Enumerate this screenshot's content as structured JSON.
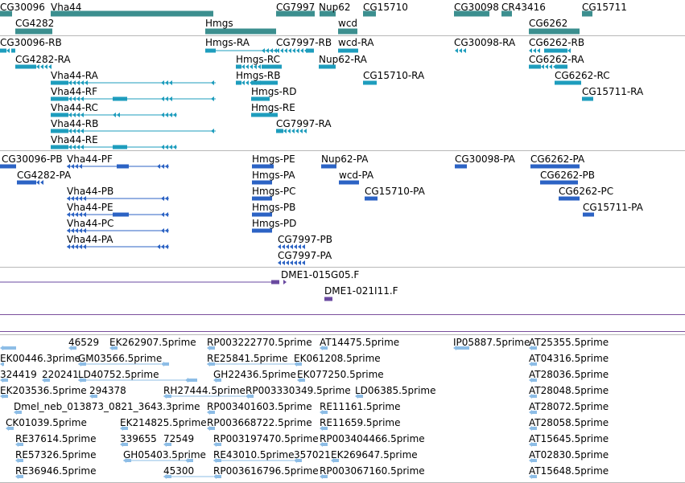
{
  "colors": {
    "gene": "#3c8f8f",
    "transcript_rna": "#1e9dbd",
    "transcript_protein": "#2c63c4",
    "est_clone": "#6a4aa0",
    "est_read": "#8dbde6",
    "separator": "#b8b8b8",
    "purple_line": "#7a4e9c"
  },
  "tracks": {
    "genes": {
      "labels": [
        "CG30096",
        "Vha44",
        "CG7997",
        "Nup62",
        "CG15710",
        "CG30098",
        "CR43416",
        "CG15711",
        "CG4282",
        "Hmgs",
        "wcd",
        "CG6262"
      ]
    },
    "transcripts": {
      "labels": [
        "CG30096-RB",
        "Hmgs-RA",
        "CG7997-RB",
        "wcd-RA",
        "CG30098-RA",
        "CG6262-RB",
        "CG4282-RA",
        "Hmgs-RC",
        "Nup62-RA",
        "CG6262-RA",
        "Vha44-RA",
        "Hmgs-RB",
        "CG15710-RA",
        "CG6262-RC",
        "Vha44-RF",
        "Hmgs-RD",
        "CG15711-RA",
        "Vha44-RC",
        "Hmgs-RE",
        "Vha44-RB",
        "CG7997-RA",
        "Vha44-RE"
      ]
    },
    "proteins": {
      "labels": [
        "CG30096-PB",
        "Vha44-PF",
        "Hmgs-PE",
        "Nup62-PA",
        "CG30098-PA",
        "CG6262-PA",
        "CG4282-PA",
        "Hmgs-PA",
        "wcd-PA",
        "CG6262-PB",
        "Vha44-PB",
        "Hmgs-PC",
        "CG15710-PA",
        "CG6262-PC",
        "Vha44-PE",
        "Hmgs-PB",
        "CG15711-PA",
        "Vha44-PC",
        "Hmgs-PD",
        "Vha44-PA",
        "CG7997-PB",
        "CG7997-PA"
      ]
    },
    "clones": {
      "labels": [
        "DME1-015G05.F",
        "DME1-021I11.F"
      ]
    },
    "ests": {
      "labels": [
        "46529",
        "EK262907.5prime",
        "RP003222770.5prime",
        "AT14475.5prime",
        "IP05887.5prime",
        "AT25355.5prime",
        "EK00446.3prime",
        "GM03566.5prime",
        "RE25841.5prime",
        "EK061208.5prime",
        "AT04316.5prime",
        "324419",
        "220241",
        "LD40752.5prime",
        "GH22436.5prime",
        "EK077250.5prime",
        "AT28036.5prime",
        "EK203536.5prime",
        "294378",
        "RH27444.5prime",
        "RP003330349.5prime",
        "LD06385.5prime",
        "AT28048.5prime",
        "Dmel_neb_013873_0821_3643.3prime",
        "RP003401603.5prime",
        "RE11161.5prime",
        "AT28072.5prime",
        "CK01039.5prime",
        "EK214825.5prime",
        "RP003668722.5prime",
        "RE11659.5prime",
        "AT28058.5prime",
        "RE37614.5prime",
        "339655",
        "72549",
        "RP003197470.5prime",
        "RP003404466.5prime",
        "AT15645.5prime",
        "RE57326.5prime",
        "GH05403.5prime",
        "RE43010.5prime",
        "357021",
        "EK269647.5prime",
        "AT02830.5prime",
        "RE36946.5prime",
        "45300",
        "RP003616796.5prime",
        "RP003067160.5prime",
        "AT15648.5prime"
      ]
    }
  }
}
